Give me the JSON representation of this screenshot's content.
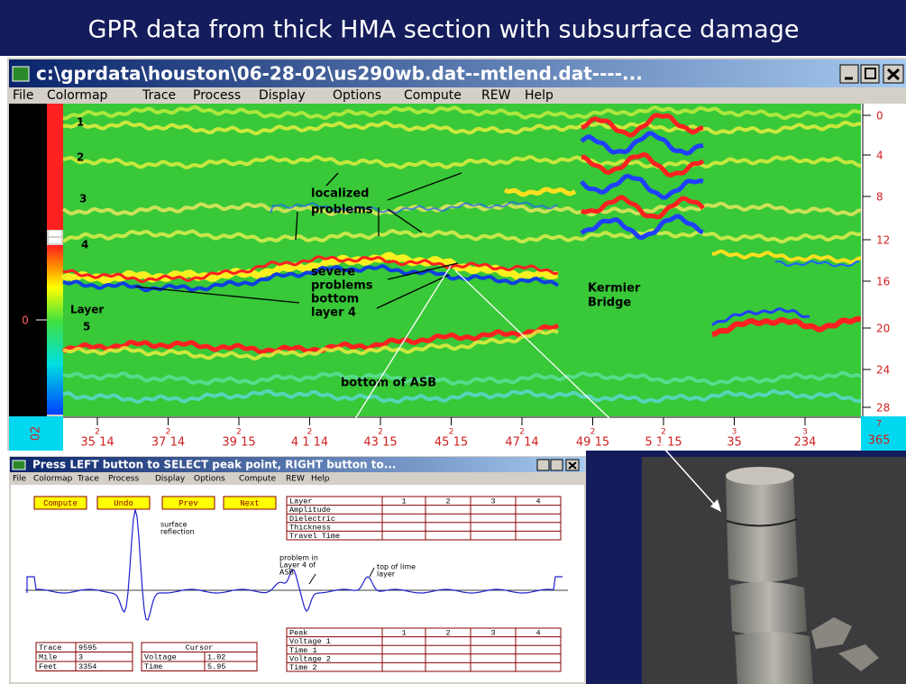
{
  "slide_title": "GPR data from thick HMA section with subsurface damage",
  "main_window": {
    "title": "c:\\gprdata\\houston\\06-28-02\\us290wb.dat--mtlend.dat----...",
    "menu": [
      "File",
      "Colormap",
      "Trace",
      "Process",
      "Display",
      "Options",
      "Compute",
      "REW",
      "Help"
    ],
    "layer_labels": [
      "1",
      "2",
      "3",
      "4",
      "Layer",
      "5"
    ],
    "localized": [
      "localized",
      "problems"
    ],
    "severe": [
      "severe",
      "problems",
      "bottom",
      "layer 4"
    ],
    "bridge": [
      "Kermier",
      "Bridge"
    ],
    "asb": "bottom of ASB",
    "left_scale": "0",
    "right_ticks": [
      "0",
      "4",
      "8",
      "12",
      "16",
      "20",
      "24",
      "28"
    ],
    "bottom_labels": [
      {
        "top": "2",
        "bottom": "35 14"
      },
      {
        "top": "2",
        "bottom": "37 14"
      },
      {
        "top": "2",
        "bottom": "39 15"
      },
      {
        "top": "2",
        "bottom": "4 1 14"
      },
      {
        "top": "2",
        "bottom": "43 15"
      },
      {
        "top": "2",
        "bottom": "45 15"
      },
      {
        "top": "2",
        "bottom": "47 14"
      },
      {
        "top": "2",
        "bottom": "49 15"
      },
      {
        "top": "2",
        "bottom": "5 1 15"
      },
      {
        "top": "3",
        "bottom": "35"
      },
      {
        "top": "3",
        "bottom": "234"
      }
    ],
    "corner_left": "02",
    "corner_right": {
      "top": "7",
      "bottom": "365"
    }
  },
  "peak_window": {
    "title": "Press LEFT button to SELECT peak point, RIGHT button to...",
    "menu": [
      "File",
      "Colormap",
      "Trace",
      "Process",
      "Display",
      "Options",
      "Compute",
      "REW",
      "Help"
    ],
    "buttons": [
      "Compute",
      "Undo",
      "Prev",
      "Next"
    ],
    "layer_table": {
      "header": [
        "Layer",
        "1",
        "2",
        "3",
        "4"
      ],
      "rows": [
        "Amplitude",
        "Dielectric",
        "Thickness",
        "Travel Time"
      ]
    },
    "peak_table": {
      "header": [
        "Peak",
        "1",
        "2",
        "3",
        "4"
      ],
      "rows": [
        "Voltage 1",
        "Time 1",
        "Voltage 2",
        "Time 2"
      ]
    },
    "info_table": [
      [
        "Trace",
        "9595"
      ],
      [
        "Mile",
        "3"
      ],
      [
        "Feet",
        "3354"
      ]
    ],
    "cursor_table": {
      "title": "Cursor",
      "rows": [
        [
          "Voltage",
          "1.02"
        ],
        [
          "Time",
          "5.95"
        ]
      ]
    },
    "surface": [
      "surface",
      "reflection"
    ],
    "problem": [
      "problem in",
      "Layer 4 of",
      "ASB"
    ],
    "lime": [
      "top of lime",
      "layer"
    ]
  }
}
